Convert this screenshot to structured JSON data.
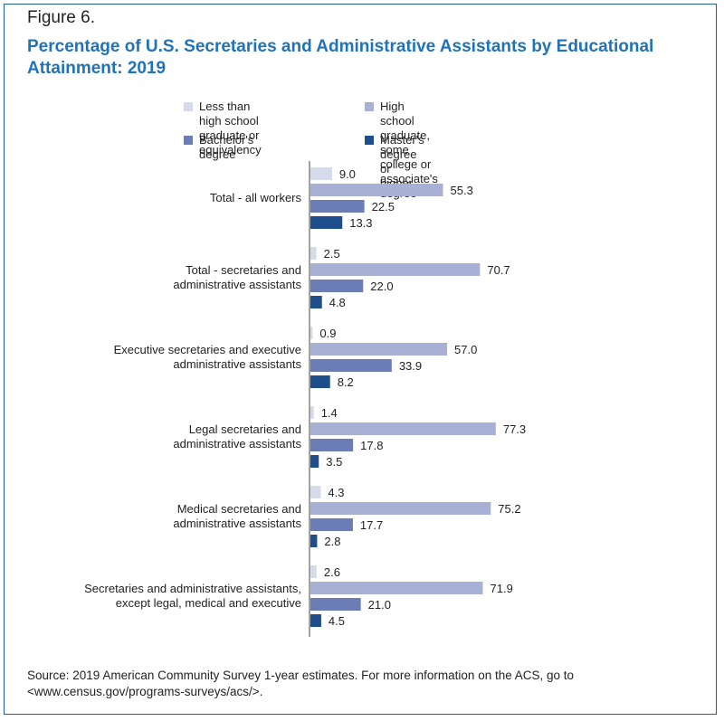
{
  "figure_label": "Figure 6.",
  "title": "Percentage of U.S. Secretaries and Administrative Assistants by Educational Attainment: 2019",
  "source": "Source: 2019 American Community Survey 1-year estimates. For more information on the ACS, go to <www.census.gov/programs-surveys/acs/>.",
  "colors": {
    "title": "#1f73b6",
    "frame": "#1f5f9e"
  },
  "chart_data": {
    "type": "bar",
    "orientation": "horizontal",
    "legend_placement": "top",
    "grid": false,
    "categories": [
      "Total - all workers",
      "Total - secretaries and\nadministrative assistants",
      "Executive secretaries and executive\nadministrative assistants",
      "Legal secretaries and\nadministrative assistants",
      "Medical secretaries and\nadministrative assistants",
      "Secretaries and administrative assistants,\nexcept legal, medical and executive"
    ],
    "series": [
      {
        "name": "Less than high school\ngraduate or equivalency",
        "color": "#d6dbeb",
        "values": [
          9.0,
          2.5,
          0.9,
          1.4,
          4.3,
          2.6
        ]
      },
      {
        "name": "High school graduate, some\ncollege or associate's degree",
        "color": "#a8b0d6",
        "values": [
          55.3,
          70.7,
          57.0,
          77.3,
          75.2,
          71.9
        ]
      },
      {
        "name": "Bachelor's degree",
        "color": "#6c7db5",
        "values": [
          22.5,
          22.0,
          33.9,
          17.8,
          17.7,
          21.0
        ]
      },
      {
        "name": "Master's degree or higher",
        "color": "#1f4e8c",
        "values": [
          13.3,
          4.8,
          8.2,
          3.5,
          2.8,
          4.5
        ]
      }
    ]
  }
}
